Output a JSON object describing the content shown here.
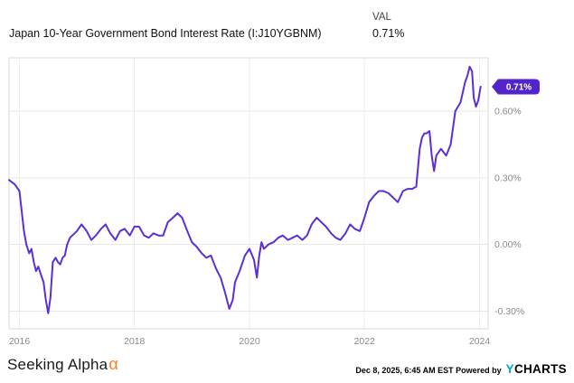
{
  "header": {
    "title": "Japan 10-Year Government Bond Interest Rate (I:J10YGBNM)",
    "val_label": "VAL",
    "val_value": "0.71%"
  },
  "chart_data": {
    "type": "line",
    "title": "Japan 10-Year Government Bond Interest Rate (I:J10YGBNM)",
    "series_name": "I:J10YGBNM",
    "line_color": "#5B2FD4",
    "badge_color": "#5224C9",
    "badge_label": "0.71%",
    "grid": true,
    "legend": "none",
    "xlabel": "",
    "ylabel": "",
    "x_ticks": [
      2016,
      2018,
      2020,
      2022,
      2024
    ],
    "x_tick_labels": [
      "2016",
      "2018",
      "2020",
      "2022",
      "2024"
    ],
    "y_ticks": [
      -0.3,
      0.0,
      0.3,
      0.6
    ],
    "y_tick_labels": [
      "-0.30%",
      "0.00%",
      "0.30%",
      "0.60%"
    ],
    "xlim": [
      2015.82,
      2024.15
    ],
    "ylim": [
      -0.38,
      0.84
    ],
    "points": [
      [
        2015.82,
        0.29
      ],
      [
        2015.92,
        0.27
      ],
      [
        2016.0,
        0.24
      ],
      [
        2016.04,
        0.15
      ],
      [
        2016.08,
        0.06
      ],
      [
        2016.12,
        0.0
      ],
      [
        2016.17,
        -0.04
      ],
      [
        2016.21,
        -0.02
      ],
      [
        2016.25,
        -0.08
      ],
      [
        2016.29,
        -0.12
      ],
      [
        2016.33,
        -0.1
      ],
      [
        2016.38,
        -0.14
      ],
      [
        2016.42,
        -0.17
      ],
      [
        2016.46,
        -0.25
      ],
      [
        2016.5,
        -0.31
      ],
      [
        2016.54,
        -0.24
      ],
      [
        2016.58,
        -0.08
      ],
      [
        2016.63,
        -0.06
      ],
      [
        2016.67,
        -0.08
      ],
      [
        2016.71,
        -0.09
      ],
      [
        2016.75,
        -0.06
      ],
      [
        2016.79,
        -0.05
      ],
      [
        2016.83,
        0.0
      ],
      [
        2016.88,
        0.03
      ],
      [
        2016.92,
        0.04
      ],
      [
        2016.96,
        0.05
      ],
      [
        2017.0,
        0.06
      ],
      [
        2017.08,
        0.09
      ],
      [
        2017.17,
        0.06
      ],
      [
        2017.25,
        0.02
      ],
      [
        2017.33,
        0.04
      ],
      [
        2017.42,
        0.07
      ],
      [
        2017.5,
        0.09
      ],
      [
        2017.58,
        0.05
      ],
      [
        2017.67,
        0.02
      ],
      [
        2017.75,
        0.06
      ],
      [
        2017.83,
        0.07
      ],
      [
        2017.92,
        0.04
      ],
      [
        2018.0,
        0.08
      ],
      [
        2018.08,
        0.08
      ],
      [
        2018.17,
        0.04
      ],
      [
        2018.25,
        0.03
      ],
      [
        2018.33,
        0.05
      ],
      [
        2018.42,
        0.04
      ],
      [
        2018.5,
        0.04
      ],
      [
        2018.58,
        0.1
      ],
      [
        2018.67,
        0.12
      ],
      [
        2018.75,
        0.14
      ],
      [
        2018.83,
        0.12
      ],
      [
        2018.92,
        0.06
      ],
      [
        2019.0,
        0.01
      ],
      [
        2019.08,
        -0.01
      ],
      [
        2019.17,
        -0.04
      ],
      [
        2019.25,
        -0.06
      ],
      [
        2019.33,
        -0.05
      ],
      [
        2019.42,
        -0.11
      ],
      [
        2019.5,
        -0.15
      ],
      [
        2019.58,
        -0.22
      ],
      [
        2019.65,
        -0.29
      ],
      [
        2019.71,
        -0.25
      ],
      [
        2019.75,
        -0.17
      ],
      [
        2019.83,
        -0.12
      ],
      [
        2019.92,
        -0.05
      ],
      [
        2020.0,
        -0.02
      ],
      [
        2020.08,
        -0.07
      ],
      [
        2020.13,
        -0.15
      ],
      [
        2020.17,
        -0.05
      ],
      [
        2020.21,
        0.01
      ],
      [
        2020.25,
        -0.02
      ],
      [
        2020.33,
        0.0
      ],
      [
        2020.42,
        0.01
      ],
      [
        2020.5,
        0.03
      ],
      [
        2020.58,
        0.04
      ],
      [
        2020.67,
        0.02
      ],
      [
        2020.75,
        0.03
      ],
      [
        2020.83,
        0.04
      ],
      [
        2020.92,
        0.02
      ],
      [
        2021.0,
        0.04
      ],
      [
        2021.08,
        0.09
      ],
      [
        2021.17,
        0.12
      ],
      [
        2021.25,
        0.1
      ],
      [
        2021.33,
        0.08
      ],
      [
        2021.42,
        0.05
      ],
      [
        2021.5,
        0.03
      ],
      [
        2021.58,
        0.02
      ],
      [
        2021.67,
        0.05
      ],
      [
        2021.75,
        0.09
      ],
      [
        2021.83,
        0.07
      ],
      [
        2021.92,
        0.06
      ],
      [
        2022.0,
        0.12
      ],
      [
        2022.08,
        0.19
      ],
      [
        2022.17,
        0.22
      ],
      [
        2022.25,
        0.24
      ],
      [
        2022.33,
        0.24
      ],
      [
        2022.42,
        0.23
      ],
      [
        2022.5,
        0.21
      ],
      [
        2022.58,
        0.19
      ],
      [
        2022.67,
        0.24
      ],
      [
        2022.75,
        0.25
      ],
      [
        2022.83,
        0.25
      ],
      [
        2022.9,
        0.26
      ],
      [
        2022.96,
        0.43
      ],
      [
        2023.0,
        0.48
      ],
      [
        2023.04,
        0.5
      ],
      [
        2023.08,
        0.5
      ],
      [
        2023.13,
        0.51
      ],
      [
        2023.17,
        0.4
      ],
      [
        2023.21,
        0.33
      ],
      [
        2023.25,
        0.4
      ],
      [
        2023.33,
        0.43
      ],
      [
        2023.42,
        0.4
      ],
      [
        2023.5,
        0.45
      ],
      [
        2023.58,
        0.6
      ],
      [
        2023.67,
        0.64
      ],
      [
        2023.75,
        0.73
      ],
      [
        2023.79,
        0.76
      ],
      [
        2023.83,
        0.8
      ],
      [
        2023.87,
        0.78
      ],
      [
        2023.9,
        0.66
      ],
      [
        2023.94,
        0.62
      ],
      [
        2023.98,
        0.65
      ],
      [
        2024.02,
        0.71
      ]
    ]
  },
  "footer": {
    "brand": "Seeking Alpha",
    "brand_alpha": "α",
    "timestamp": "Dec 8, 2025, 6:45 AM EST",
    "powered_by": "Powered by",
    "ycharts_y": "Y",
    "ycharts_rest": "CHARTS"
  }
}
